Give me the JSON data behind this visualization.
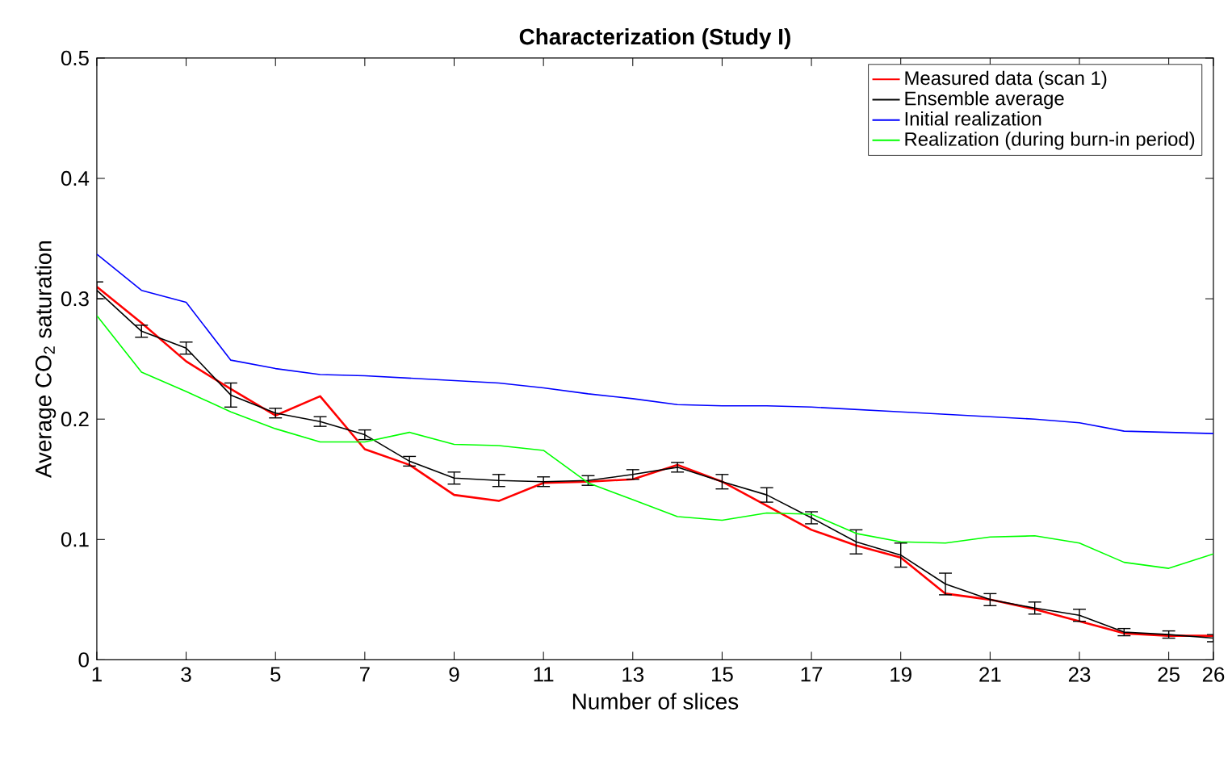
{
  "chart_data": {
    "type": "line",
    "title": "Characterization (Study I)",
    "xlabel": "Number of slices",
    "ylabel": "Average CO$_{2}$ saturation",
    "x": [
      1,
      2,
      3,
      4,
      5,
      6,
      7,
      8,
      9,
      10,
      11,
      12,
      13,
      14,
      15,
      16,
      17,
      18,
      19,
      20,
      21,
      22,
      23,
      24,
      25,
      26
    ],
    "series": [
      {
        "name": "Measured data (scan 1)",
        "color": "#ff0000",
        "values": [
          0.31,
          0.28,
          0.248,
          0.225,
          0.203,
          0.219,
          0.175,
          0.162,
          0.137,
          0.132,
          0.147,
          0.148,
          0.15,
          0.162,
          0.148,
          0.128,
          0.108,
          0.095,
          0.085,
          0.055,
          0.05,
          0.042,
          0.032,
          0.022,
          0.02,
          0.02
        ]
      },
      {
        "name": "Ensemble average",
        "color": "#000000",
        "values": [
          0.307,
          0.273,
          0.259,
          0.22,
          0.205,
          0.198,
          0.187,
          0.165,
          0.151,
          0.149,
          0.148,
          0.149,
          0.154,
          0.16,
          0.148,
          0.137,
          0.118,
          0.098,
          0.087,
          0.063,
          0.05,
          0.043,
          0.037,
          0.023,
          0.021,
          0.018
        ],
        "errors": [
          0.007,
          0.005,
          0.005,
          0.01,
          0.004,
          0.004,
          0.004,
          0.004,
          0.005,
          0.005,
          0.004,
          0.004,
          0.004,
          0.004,
          0.006,
          0.006,
          0.005,
          0.01,
          0.01,
          0.009,
          0.005,
          0.005,
          0.005,
          0.003,
          0.003,
          0.003
        ]
      },
      {
        "name": "Initial realization",
        "color": "#0000ff",
        "values": [
          0.337,
          0.307,
          0.297,
          0.249,
          0.242,
          0.237,
          0.236,
          0.234,
          0.232,
          0.23,
          0.226,
          0.221,
          0.217,
          0.212,
          0.211,
          0.211,
          0.21,
          0.208,
          0.206,
          0.204,
          0.202,
          0.2,
          0.197,
          0.19,
          0.189,
          0.188
        ]
      },
      {
        "name": "Realization (during burn-in period)",
        "color": "#00ff00",
        "values": [
          0.286,
          0.239,
          0.223,
          0.206,
          0.192,
          0.181,
          0.181,
          0.189,
          0.179,
          0.178,
          0.174,
          0.147,
          0.133,
          0.119,
          0.116,
          0.122,
          0.121,
          0.105,
          0.098,
          0.097,
          0.102,
          0.103,
          0.097,
          0.081,
          0.076,
          0.088
        ]
      }
    ],
    "xlim": [
      1,
      26
    ],
    "ylim": [
      0,
      0.5
    ],
    "xticks": [
      1,
      3,
      5,
      7,
      9,
      11,
      13,
      15,
      17,
      19,
      21,
      23,
      25,
      26
    ],
    "yticks": [
      0,
      0.1,
      0.2,
      0.3,
      0.4,
      0.5
    ],
    "legend": "top right",
    "grid": false
  }
}
